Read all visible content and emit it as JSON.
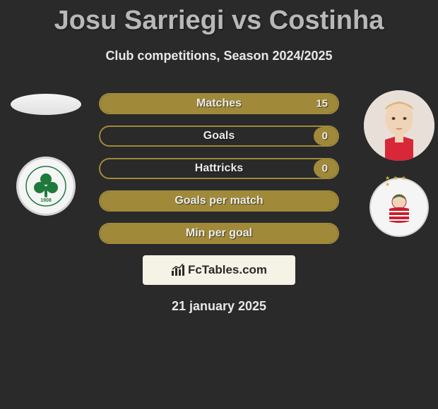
{
  "title": "Josu Sarriegi vs Costinha",
  "subtitle": "Club competitions, Season 2024/2025",
  "date": "21 january 2025",
  "footer_brand": "FcTables.com",
  "colors": {
    "bg": "#2a2a2a",
    "bar_border": "#a08a3a",
    "bar_fill": "#a08a3a",
    "title_text": "#b8b8b8",
    "text": "#e8e8e8"
  },
  "left_club": {
    "name": "Panathinaikos",
    "year": "1908",
    "primary": "#1e7a3a",
    "secondary": "#ffffff"
  },
  "right_club": {
    "name": "Olympiacos",
    "primary": "#c8202f",
    "secondary": "#ffffff",
    "stars": "★ ★ ★ ★"
  },
  "stats": [
    {
      "label": "Matches",
      "right_value": "15",
      "right_fill_pct": 100
    },
    {
      "label": "Goals",
      "right_value": "0",
      "right_fill_pct": 10
    },
    {
      "label": "Hattricks",
      "right_value": "0",
      "right_fill_pct": 10
    },
    {
      "label": "Goals per match",
      "right_value": "",
      "right_fill_pct": 100
    },
    {
      "label": "Min per goal",
      "right_value": "",
      "right_fill_pct": 100
    }
  ]
}
